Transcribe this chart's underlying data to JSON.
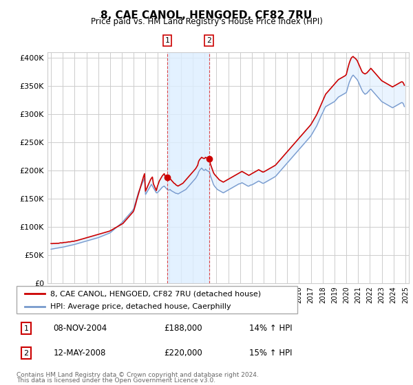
{
  "title": "8, CAE CANOL, HENGOED, CF82 7RU",
  "subtitle": "Price paid vs. HM Land Registry's House Price Index (HPI)",
  "ylabel_ticks": [
    "£0",
    "£50K",
    "£100K",
    "£150K",
    "£200K",
    "£250K",
    "£300K",
    "£350K",
    "£400K"
  ],
  "ytick_vals": [
    0,
    50000,
    100000,
    150000,
    200000,
    250000,
    300000,
    350000,
    400000
  ],
  "ylim": [
    0,
    410000
  ],
  "xlim_start": 1994.7,
  "xlim_end": 2025.3,
  "legend_property": "8, CAE CANOL, HENGOED, CF82 7RU (detached house)",
  "legend_hpi": "HPI: Average price, detached house, Caerphilly",
  "transactions": [
    {
      "num": 1,
      "date": "08-NOV-2004",
      "price": 188000,
      "pct": "14%",
      "dir": "↑",
      "label": "HPI",
      "year": 2004.86
    },
    {
      "num": 2,
      "date": "12-MAY-2008",
      "price": 220000,
      "pct": "15%",
      "dir": "↑",
      "label": "HPI",
      "year": 2008.37
    }
  ],
  "footer1": "Contains HM Land Registry data © Crown copyright and database right 2024.",
  "footer2": "This data is licensed under the Open Government Licence v3.0.",
  "property_color": "#cc0000",
  "hpi_color": "#7799cc",
  "shade_color": "#ddeeff",
  "vline_color": "#dd4444",
  "shade_start": 2004.86,
  "shade_end": 2008.37,
  "property_line_y": [
    70000,
    69800,
    70200,
    70000,
    70300,
    70100,
    70500,
    70200,
    70600,
    70900,
    71400,
    71000,
    71500,
    71800,
    72100,
    72000,
    72400,
    72600,
    73100,
    72900,
    73300,
    73600,
    74100,
    73900,
    74500,
    74800,
    75200,
    75700,
    76200,
    76700,
    77100,
    77600,
    78100,
    78700,
    79200,
    79700,
    80200,
    80700,
    81200,
    81700,
    82200,
    82700,
    83200,
    83700,
    84200,
    84700,
    85200,
    85700,
    86200,
    86800,
    87300,
    87800,
    88300,
    88800,
    89300,
    89800,
    90300,
    90800,
    91300,
    91800,
    92500,
    93500,
    94500,
    95500,
    96500,
    97500,
    98500,
    99500,
    100500,
    101500,
    102500,
    103500,
    104500,
    105500,
    107500,
    109500,
    111500,
    113500,
    115500,
    117500,
    119500,
    121500,
    123500,
    125500,
    128000,
    134000,
    140000,
    147000,
    153000,
    159000,
    165000,
    171000,
    177000,
    183000,
    189000,
    194000,
    163000,
    167000,
    171000,
    175000,
    179000,
    183000,
    186000,
    188000,
    176000,
    172000,
    168000,
    164000,
    171000,
    176000,
    181000,
    184000,
    187000,
    190000,
    192000,
    194000,
    189000,
    186000,
    184000,
    182000,
    183000,
    185000,
    183000,
    181000,
    179000,
    177000,
    176000,
    174000,
    173000,
    172000,
    173000,
    174000,
    175000,
    176000,
    177000,
    179000,
    181000,
    183000,
    185000,
    187000,
    189000,
    191000,
    193000,
    195000,
    197000,
    199000,
    201000,
    203000,
    206000,
    209000,
    216000,
    219000,
    221000,
    223000,
    222000,
    221000,
    221000,
    223000,
    222000,
    221000,
    220000,
    219000,
    211000,
    206000,
    201000,
    196000,
    193000,
    191000,
    189000,
    187000,
    185000,
    183000,
    182000,
    181000,
    180000,
    179000,
    180000,
    181000,
    182000,
    183000,
    184000,
    185000,
    186000,
    187000,
    188000,
    189000,
    190000,
    191000,
    192000,
    193000,
    194000,
    195000,
    196000,
    197000,
    198000,
    197000,
    196000,
    195000,
    194000,
    193000,
    192000,
    191000,
    192000,
    193000,
    194000,
    195000,
    196000,
    197000,
    198000,
    199000,
    200000,
    201000,
    200000,
    199000,
    198000,
    197000,
    197000,
    198000,
    199000,
    200000,
    201000,
    202000,
    203000,
    204000,
    205000,
    206000,
    207000,
    208000,
    209000,
    211000,
    213000,
    215000,
    217000,
    219000,
    221000,
    223000,
    225000,
    227000,
    229000,
    231000,
    233000,
    235000,
    237000,
    239000,
    241000,
    243000,
    245000,
    247000,
    249000,
    251000,
    253000,
    255000,
    257000,
    259000,
    261000,
    263000,
    265000,
    267000,
    269000,
    271000,
    273000,
    275000,
    277000,
    279000,
    281000,
    284000,
    287000,
    290000,
    293000,
    296000,
    299000,
    303000,
    307000,
    311000,
    315000,
    319000,
    323000,
    327000,
    331000,
    335000,
    337000,
    339000,
    341000,
    343000,
    345000,
    347000,
    349000,
    351000,
    353000,
    355000,
    357000,
    359000,
    361000,
    362000,
    363000,
    364000,
    365000,
    366000,
    367000,
    368000,
    370000,
    377000,
    384000,
    390000,
    395000,
    399000,
    401000,
    402000,
    400000,
    399000,
    397000,
    395000,
    391000,
    387000,
    383000,
    379000,
    375000,
    373000,
    372000,
    371000,
    372000,
    373000,
    375000,
    377000,
    379000,
    381000,
    379000,
    377000,
    375000,
    373000,
    371000,
    369000,
    367000,
    365000,
    363000,
    361000,
    359000,
    358000,
    357000,
    356000,
    355000,
    354000,
    353000,
    352000,
    351000,
    350000,
    349000,
    348000,
    349000,
    350000,
    351000,
    352000,
    353000,
    354000,
    355000,
    356000,
    357000,
    357000,
    355000,
    351000
  ],
  "hpi_line_y": [
    60000,
    60300,
    60600,
    60900,
    61200,
    61500,
    61800,
    62100,
    62400,
    62700,
    63000,
    63300,
    63600,
    64000,
    64400,
    64800,
    65200,
    65600,
    66000,
    66400,
    66800,
    67200,
    67600,
    68000,
    68500,
    69000,
    69500,
    70000,
    70500,
    71000,
    71500,
    72000,
    72500,
    73000,
    73500,
    74000,
    74500,
    75000,
    75500,
    76000,
    76500,
    77000,
    77500,
    78000,
    78500,
    79000,
    79500,
    80000,
    80500,
    81200,
    81900,
    82600,
    83300,
    84000,
    84700,
    85400,
    86100,
    86800,
    87500,
    88200,
    89000,
    90500,
    92000,
    93500,
    95000,
    96500,
    98000,
    99500,
    101000,
    102500,
    104000,
    105500,
    107000,
    109000,
    111000,
    113000,
    115000,
    117000,
    119000,
    121000,
    123000,
    125000,
    127000,
    129000,
    132000,
    138000,
    144000,
    150000,
    156000,
    162000,
    166000,
    170000,
    174000,
    178000,
    182000,
    186000,
    157000,
    160000,
    163000,
    166000,
    169000,
    172000,
    175000,
    172000,
    169000,
    166000,
    163000,
    160000,
    160000,
    162000,
    164000,
    166000,
    168000,
    170000,
    171000,
    172000,
    170000,
    168000,
    166000,
    165000,
    165000,
    166000,
    164000,
    163000,
    162000,
    161000,
    160000,
    159000,
    159000,
    158000,
    159000,
    160000,
    161000,
    162000,
    163000,
    164000,
    165000,
    166000,
    168000,
    170000,
    172000,
    174000,
    176000,
    178000,
    180000,
    182000,
    184000,
    186000,
    189000,
    192000,
    197000,
    200000,
    202000,
    204000,
    202000,
    200000,
    200000,
    202000,
    200000,
    199000,
    198000,
    197000,
    190000,
    185000,
    180000,
    175000,
    172000,
    170000,
    168000,
    166000,
    165000,
    164000,
    163000,
    162000,
    161000,
    160000,
    161000,
    162000,
    163000,
    164000,
    165000,
    166000,
    167000,
    168000,
    169000,
    170000,
    171000,
    172000,
    173000,
    174000,
    175000,
    176000,
    176000,
    177000,
    178000,
    177000,
    176000,
    175000,
    174000,
    173000,
    172000,
    172000,
    173000,
    174000,
    174000,
    175000,
    176000,
    177000,
    178000,
    179000,
    180000,
    181000,
    180000,
    179000,
    178000,
    177000,
    177000,
    178000,
    179000,
    180000,
    181000,
    182000,
    183000,
    184000,
    185000,
    186000,
    187000,
    188000,
    189000,
    191000,
    193000,
    195000,
    197000,
    199000,
    201000,
    203000,
    205000,
    207000,
    209000,
    211000,
    213000,
    215000,
    217000,
    219000,
    221000,
    223000,
    225000,
    227000,
    229000,
    231000,
    233000,
    235000,
    237000,
    239000,
    241000,
    243000,
    245000,
    247000,
    249000,
    251000,
    253000,
    255000,
    257000,
    259000,
    261000,
    264000,
    267000,
    270000,
    273000,
    276000,
    279000,
    283000,
    287000,
    291000,
    295000,
    299000,
    302000,
    306000,
    310000,
    313000,
    314000,
    315000,
    316000,
    317000,
    318000,
    319000,
    320000,
    321000,
    322000,
    324000,
    326000,
    328000,
    330000,
    331000,
    332000,
    333000,
    334000,
    335000,
    336000,
    337000,
    338000,
    344000,
    350000,
    356000,
    360000,
    364000,
    367000,
    369000,
    367000,
    365000,
    363000,
    361000,
    358000,
    354000,
    350000,
    346000,
    342000,
    339000,
    337000,
    335000,
    336000,
    337000,
    339000,
    341000,
    343000,
    344000,
    342000,
    340000,
    338000,
    336000,
    334000,
    332000,
    330000,
    328000,
    326000,
    324000,
    322000,
    321000,
    320000,
    319000,
    318000,
    317000,
    316000,
    315000,
    314000,
    313000,
    312000,
    311000,
    312000,
    313000,
    314000,
    315000,
    316000,
    317000,
    318000,
    319000,
    320000,
    320000,
    318000,
    313000
  ]
}
